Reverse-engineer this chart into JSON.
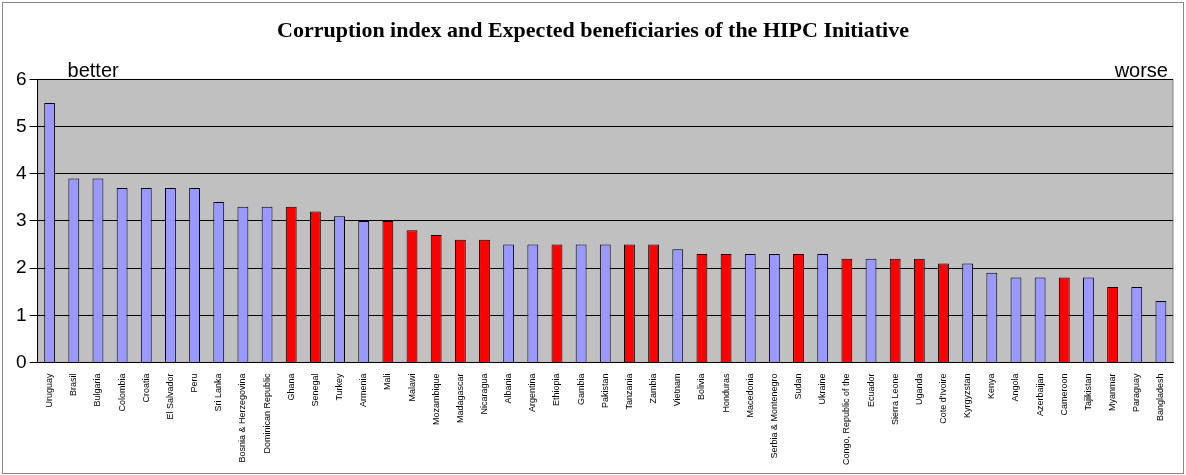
{
  "chart_data": {
    "type": "bar",
    "title": "Corruption index and Expected beneficiaries of the HIPC Initiative",
    "categories": [
      "Uruguay",
      "Brasil",
      "Bulgaria",
      "Colombia",
      "Croatia",
      "El Salvador",
      "Peru",
      "Sri Lanka",
      "Bosnia & Herzegovina",
      "Dominican Republic",
      "Ghana",
      "Senegal",
      "Turkey",
      "Armenia",
      "Mali",
      "Malawi",
      "Mozambique",
      "Madagascar",
      "Nicaragua",
      "Albania",
      "Argentina",
      "Ethiopia",
      "Gambia",
      "Pakistan",
      "Tanzania",
      "Zambia",
      "Vietnam",
      "Bolivia",
      "Honduras",
      "Macedonia",
      "Serbia & Montenegro",
      "Sudan",
      "Ukraine",
      "Congo, Republic of the",
      "Ecuador",
      "Sierra Leone",
      "Uganda",
      "Cote d'Ivoire",
      "Kyrgyzstan",
      "Kenya",
      "Angola",
      "Azerbaijan",
      "Cameroon",
      "Tajikistan",
      "Myanmar",
      "Paraguay",
      "Bangladesh"
    ],
    "values": [
      5.5,
      3.9,
      3.9,
      3.7,
      3.7,
      3.7,
      3.7,
      3.4,
      3.3,
      3.3,
      3.3,
      3.2,
      3.1,
      3.0,
      3.0,
      2.8,
      2.7,
      2.6,
      2.6,
      2.5,
      2.5,
      2.5,
      2.5,
      2.5,
      2.5,
      2.5,
      2.4,
      2.3,
      2.3,
      2.3,
      2.3,
      2.3,
      2.3,
      2.2,
      2.2,
      2.2,
      2.2,
      2.1,
      2.1,
      1.9,
      1.8,
      1.8,
      1.8,
      1.8,
      1.6,
      1.6,
      1.3
    ],
    "colors": [
      "#9999ff",
      "#9999ff",
      "#9999ff",
      "#9999ff",
      "#9999ff",
      "#9999ff",
      "#9999ff",
      "#9999ff",
      "#9999ff",
      "#9999ff",
      "#ff0000",
      "#ff0000",
      "#9999ff",
      "#9999ff",
      "#ff0000",
      "#ff0000",
      "#ff0000",
      "#ff0000",
      "#ff0000",
      "#9999ff",
      "#9999ff",
      "#ff0000",
      "#9999ff",
      "#9999ff",
      "#ff0000",
      "#ff0000",
      "#9999ff",
      "#ff0000",
      "#ff0000",
      "#9999ff",
      "#9999ff",
      "#ff0000",
      "#9999ff",
      "#ff0000",
      "#9999ff",
      "#ff0000",
      "#ff0000",
      "#ff0000",
      "#9999ff",
      "#9999ff",
      "#9999ff",
      "#9999ff",
      "#ff0000",
      "#9999ff",
      "#ff0000",
      "#9999ff",
      "#9999ff"
    ],
    "ylim": [
      0,
      6
    ],
    "yticks": [
      0,
      1,
      2,
      3,
      4,
      5,
      6
    ],
    "grid": "y",
    "legend": false,
    "annotations": [
      "better",
      "worse"
    ]
  }
}
